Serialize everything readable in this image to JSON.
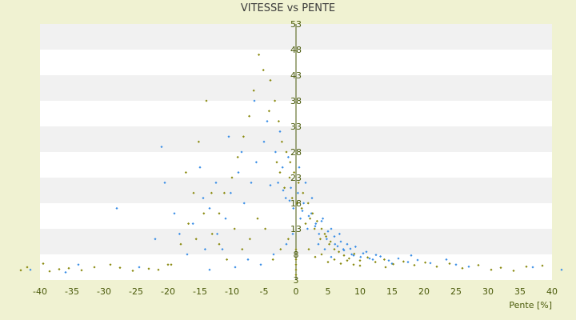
{
  "chart_data": {
    "type": "scatter",
    "title": "VITESSE vs PENTE",
    "xlabel": "Pente [%]",
    "ylabel": "",
    "xlim": [
      -40,
      40
    ],
    "ylim": [
      3,
      53
    ],
    "xticks": [
      -40,
      -35,
      -30,
      -25,
      -20,
      -15,
      -10,
      -5,
      0,
      5,
      10,
      15,
      20,
      25,
      30,
      35,
      40
    ],
    "yticks": [
      3,
      8,
      13,
      18,
      23,
      28,
      33,
      38,
      43,
      48,
      53
    ],
    "grid": "horizontal alternating bands",
    "series": [
      {
        "color": "#3a8ee6",
        "points": [
          [
            -3.2,
            28
          ],
          [
            -2.8,
            22
          ],
          [
            -2.1,
            25
          ],
          [
            -1.6,
            19
          ],
          [
            -1.2,
            27
          ],
          [
            -0.8,
            21
          ],
          [
            -0.4,
            17
          ],
          [
            0.3,
            20
          ],
          [
            0.7,
            15
          ],
          [
            1.2,
            18
          ],
          [
            1.8,
            13
          ],
          [
            2.4,
            16
          ],
          [
            3.1,
            14
          ],
          [
            3.6,
            12
          ],
          [
            4.2,
            15
          ],
          [
            4.8,
            11
          ],
          [
            5.5,
            13
          ],
          [
            6.1,
            10
          ],
          [
            6.8,
            12
          ],
          [
            7.4,
            9
          ],
          [
            8.0,
            10
          ],
          [
            8.7,
            8
          ],
          [
            9.3,
            9.5
          ],
          [
            10.1,
            7.5
          ],
          [
            11.0,
            8.5
          ],
          [
            12.0,
            7
          ],
          [
            13.2,
            7.6
          ],
          [
            14.5,
            6.8
          ],
          [
            16.0,
            7.2
          ],
          [
            17.5,
            6.5
          ],
          [
            19.0,
            6.9
          ],
          [
            21.0,
            6.3
          ],
          [
            23.5,
            7.0
          ],
          [
            25.0,
            6.0
          ],
          [
            27.0,
            5.6
          ],
          [
            -5.0,
            30
          ],
          [
            -6.2,
            26
          ],
          [
            -7.0,
            22
          ],
          [
            -8.1,
            18
          ],
          [
            -9.0,
            24
          ],
          [
            -10.2,
            20
          ],
          [
            -11.0,
            15
          ],
          [
            -12.3,
            12
          ],
          [
            -13.5,
            17
          ],
          [
            -14.2,
            9
          ],
          [
            -15.0,
            25
          ],
          [
            -16.1,
            14
          ],
          [
            -17.0,
            8
          ],
          [
            -18.2,
            12
          ],
          [
            -19.0,
            16
          ],
          [
            -20.5,
            22
          ],
          [
            -21.0,
            29
          ],
          [
            -22.0,
            11
          ],
          [
            -24.5,
            5.5
          ],
          [
            -28.0,
            17
          ],
          [
            -34.0,
            6
          ],
          [
            -36.0,
            4.5
          ],
          [
            -41.5,
            5
          ],
          [
            41.5,
            5
          ],
          [
            37.0,
            5.5
          ],
          [
            4.0,
            14.5
          ],
          [
            5.0,
            12.5
          ],
          [
            3.0,
            13.5
          ],
          [
            2.0,
            15.5
          ],
          [
            6.0,
            11.5
          ],
          [
            7.0,
            10.5
          ],
          [
            1.0,
            16.5
          ],
          [
            -1.0,
            18.5
          ],
          [
            -2.0,
            20.5
          ],
          [
            -4.0,
            21.5
          ],
          [
            9.0,
            7.8
          ],
          [
            10.5,
            8.2
          ],
          [
            11.5,
            7.2
          ],
          [
            12.5,
            7.9
          ],
          [
            8.5,
            9.1
          ],
          [
            7.5,
            8.8
          ],
          [
            6.5,
            9.6
          ],
          [
            -0.5,
            12
          ],
          [
            -1.5,
            10
          ],
          [
            -3.5,
            8
          ],
          [
            -5.5,
            6
          ],
          [
            -7.5,
            7
          ],
          [
            -9.5,
            5.5
          ],
          [
            -11.5,
            9
          ],
          [
            -13.5,
            5
          ],
          [
            0.5,
            25
          ],
          [
            1.5,
            22
          ],
          [
            2.5,
            19
          ],
          [
            -2.5,
            32
          ],
          [
            -4.5,
            34
          ],
          [
            -6.5,
            38
          ],
          [
            -8.5,
            28
          ],
          [
            -10.5,
            31
          ],
          [
            -12.5,
            22
          ],
          [
            -14.5,
            19
          ],
          [
            3.5,
            10
          ],
          [
            4.5,
            9
          ],
          [
            5.5,
            7.5
          ],
          [
            15.0,
            6.2
          ],
          [
            18.0,
            7.8
          ]
        ]
      },
      {
        "color": "#8a8a10",
        "points": [
          [
            -3.0,
            26
          ],
          [
            -2.5,
            24
          ],
          [
            -1.8,
            21
          ],
          [
            -1.0,
            23
          ],
          [
            -0.6,
            19
          ],
          [
            0.2,
            18
          ],
          [
            0.9,
            17
          ],
          [
            1.5,
            14
          ],
          [
            2.2,
            15
          ],
          [
            2.9,
            13
          ],
          [
            3.8,
            11
          ],
          [
            4.5,
            12
          ],
          [
            5.2,
            10
          ],
          [
            6.0,
            9
          ],
          [
            6.7,
            8.5
          ],
          [
            7.5,
            7.8
          ],
          [
            8.3,
            7.2
          ],
          [
            9.1,
            8.1
          ],
          [
            10.0,
            6.8
          ],
          [
            11.2,
            7.4
          ],
          [
            12.4,
            6.5
          ],
          [
            13.8,
            7.0
          ],
          [
            15.2,
            6.1
          ],
          [
            16.8,
            6.6
          ],
          [
            18.5,
            5.9
          ],
          [
            20.2,
            6.4
          ],
          [
            22.0,
            5.6
          ],
          [
            24.0,
            6.2
          ],
          [
            26.0,
            5.3
          ],
          [
            28.5,
            5.9
          ],
          [
            30.5,
            5.0
          ],
          [
            32.0,
            5.4
          ],
          [
            34.0,
            4.8
          ],
          [
            36.0,
            5.6
          ],
          [
            38.5,
            5.8
          ],
          [
            -4.2,
            36
          ],
          [
            -5.1,
            44
          ],
          [
            -5.8,
            47
          ],
          [
            -6.6,
            40
          ],
          [
            -7.3,
            35
          ],
          [
            -8.2,
            31
          ],
          [
            -9.1,
            27
          ],
          [
            -10.0,
            23
          ],
          [
            -11.2,
            20
          ],
          [
            -12.0,
            16
          ],
          [
            -13.1,
            12
          ],
          [
            -14.0,
            38
          ],
          [
            -15.2,
            30
          ],
          [
            -16.0,
            20
          ],
          [
            -17.2,
            24
          ],
          [
            -18.0,
            10
          ],
          [
            -19.5,
            6
          ],
          [
            -21.5,
            5
          ],
          [
            -23.0,
            5.2
          ],
          [
            -25.5,
            4.8
          ],
          [
            -27.5,
            5.4
          ],
          [
            -29.0,
            6
          ],
          [
            -31.5,
            5.5
          ],
          [
            -33.5,
            4.9
          ],
          [
            -35.5,
            5.3
          ],
          [
            -37.0,
            5.1
          ],
          [
            -38.5,
            4.7
          ],
          [
            -39.5,
            6.2
          ],
          [
            -42.0,
            5.5
          ],
          [
            -43.0,
            4.9
          ],
          [
            -4.0,
            42
          ],
          [
            -3.3,
            38
          ],
          [
            -2.7,
            34
          ],
          [
            -2.2,
            30
          ],
          [
            -1.5,
            28
          ],
          [
            -0.9,
            26
          ],
          [
            -0.3,
            24
          ],
          [
            0.4,
            22
          ],
          [
            1.1,
            20
          ],
          [
            1.9,
            18
          ],
          [
            2.6,
            16
          ],
          [
            3.3,
            14.5
          ],
          [
            4.0,
            13
          ],
          [
            4.7,
            11.5
          ],
          [
            5.4,
            10.5
          ],
          [
            0.0,
            6
          ],
          [
            0.0,
            4
          ],
          [
            0.0,
            7
          ],
          [
            0.0,
            5
          ],
          [
            0.0,
            9
          ],
          [
            -1.2,
            11
          ],
          [
            -2.4,
            9
          ],
          [
            -3.6,
            7
          ],
          [
            -4.8,
            13
          ],
          [
            -6.0,
            15
          ],
          [
            -7.2,
            11
          ],
          [
            -8.4,
            9
          ],
          [
            -9.6,
            13
          ],
          [
            -10.8,
            7
          ],
          [
            -12.0,
            10
          ],
          [
            -13.2,
            20
          ],
          [
            -14.4,
            16
          ],
          [
            -15.6,
            11
          ],
          [
            -16.8,
            14
          ],
          [
            -20.0,
            6
          ],
          [
            2.0,
            9
          ],
          [
            3.0,
            7.5
          ],
          [
            4.0,
            8
          ],
          [
            5.0,
            6.5
          ],
          [
            6.0,
            7
          ],
          [
            7.0,
            6.2
          ],
          [
            8.0,
            6.8
          ],
          [
            9.0,
            6
          ],
          [
            10.0,
            5.8
          ],
          [
            14.0,
            5.5
          ]
        ]
      }
    ]
  }
}
